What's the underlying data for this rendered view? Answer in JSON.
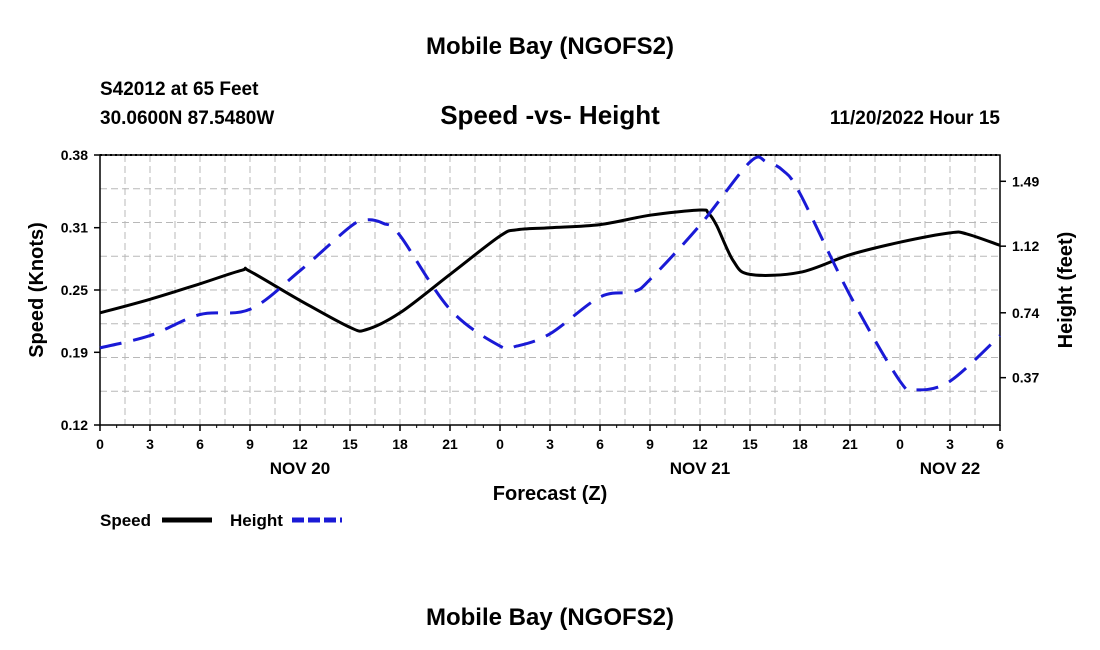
{
  "chart_data": {
    "type": "line",
    "title": "Mobile Bay (NGOFS2)",
    "footer_title": "Mobile Bay (NGOFS2)",
    "subtitle": "Speed -vs- Height",
    "station": "S42012 at 65 Feet",
    "coordinates": "30.0600N  87.5480W",
    "timestamp": "11/20/2022 Hour 15",
    "xlabel": "Forecast (Z)",
    "ylabel": "Speed (Knots)",
    "y2label": "Height (feet)",
    "xlim": [
      0,
      54
    ],
    "ylim": [
      0.12,
      0.38
    ],
    "y2lim": [
      0.1,
      1.64
    ],
    "x_ticks": [
      0,
      3,
      6,
      9,
      12,
      15,
      18,
      21,
      24,
      27,
      30,
      33,
      36,
      39,
      42,
      45,
      48,
      51,
      54
    ],
    "x_tick_labels": [
      "0",
      "3",
      "6",
      "9",
      "12",
      "15",
      "18",
      "21",
      "0",
      "3",
      "6",
      "9",
      "12",
      "15",
      "18",
      "21",
      "0",
      "3",
      "6"
    ],
    "y_ticks": [
      0.12,
      0.19,
      0.25,
      0.31,
      0.38
    ],
    "y_tick_labels": [
      "0.12",
      "0.19",
      "0.25",
      "0.31",
      "0.38"
    ],
    "y2_ticks": [
      0.37,
      0.74,
      1.12,
      1.49
    ],
    "y2_tick_labels": [
      "0.37",
      "0.74",
      "1.12",
      "1.49"
    ],
    "date_labels": [
      {
        "x": 12,
        "label": "NOV 20"
      },
      {
        "x": 36,
        "label": "NOV 21"
      },
      {
        "x": 51,
        "label": "NOV 22"
      }
    ],
    "grid": true,
    "legend_position": "bottom-left",
    "series": [
      {
        "name": "Speed",
        "legend_label": "Speed",
        "axis": "left",
        "color": "#000000",
        "dash": "solid",
        "x": [
          0,
          3,
          6,
          8.5,
          9,
          12,
          15,
          16,
          18,
          21,
          24,
          25,
          27,
          30,
          33,
          36,
          36.5,
          37,
          38,
          39,
          42,
          45,
          48,
          51,
          52,
          54
        ],
        "values": [
          0.228,
          0.241,
          0.256,
          0.269,
          0.268,
          0.24,
          0.214,
          0.212,
          0.228,
          0.265,
          0.302,
          0.308,
          0.31,
          0.313,
          0.322,
          0.327,
          0.324,
          0.312,
          0.278,
          0.265,
          0.267,
          0.284,
          0.296,
          0.305,
          0.304,
          0.293
        ]
      },
      {
        "name": "Height",
        "legend_label": "Height",
        "axis": "right",
        "color": "#1a1ad6",
        "dash": "dashed",
        "x": [
          0,
          3,
          6,
          9,
          12,
          15,
          16,
          17,
          18,
          21,
          24,
          25,
          27,
          30,
          32,
          33,
          36,
          39,
          40,
          41,
          42,
          45,
          48,
          49,
          51,
          54
        ],
        "values": [
          0.54,
          0.61,
          0.73,
          0.76,
          0.98,
          1.23,
          1.27,
          1.25,
          1.18,
          0.76,
          0.55,
          0.55,
          0.62,
          0.83,
          0.86,
          0.93,
          1.24,
          1.6,
          1.6,
          1.55,
          1.42,
          0.84,
          0.35,
          0.3,
          0.35,
          0.61
        ]
      }
    ]
  }
}
